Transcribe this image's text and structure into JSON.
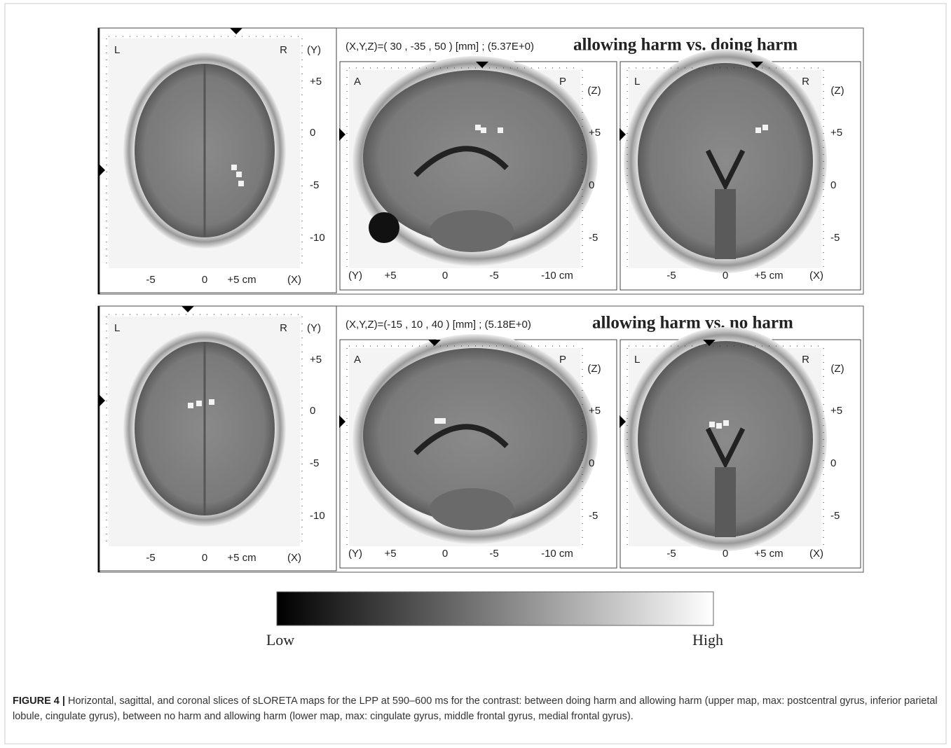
{
  "panels": [
    {
      "coordinates": "(X,Y,Z)=( 30 , -35 , 50 ) [mm] ; (5.37E+0)",
      "title": "allowing harm vs. doing harm",
      "views": [
        {
          "corner_left": "L",
          "corner_right": "R",
          "axis_v": "(Y)",
          "v_ticks": [
            "+5",
            "0",
            "-5",
            "-10"
          ],
          "h_ticks": [
            "-5",
            "0",
            "+5 cm"
          ],
          "axis_h": "(X)"
        },
        {
          "corner_left": "A",
          "corner_right": "P",
          "axis_v": "(Z)",
          "v_ticks": [
            "+5",
            "0",
            "-5"
          ],
          "h_ticks": [
            "+5",
            "0",
            "-5",
            "-10 cm"
          ],
          "axis_h": "(Y)"
        },
        {
          "corner_left": "L",
          "corner_right": "R",
          "axis_v": "(Z)",
          "v_ticks": [
            "+5",
            "0",
            "-5"
          ],
          "h_ticks": [
            "-5",
            "0",
            "+5 cm"
          ],
          "axis_h": "(X)"
        }
      ]
    },
    {
      "coordinates": "(X,Y,Z)=(-15 , 10 , 40 ) [mm] ; (5.18E+0)",
      "title": "allowing harm vs. no harm",
      "views": [
        {
          "corner_left": "L",
          "corner_right": "R",
          "axis_v": "(Y)",
          "v_ticks": [
            "+5",
            "0",
            "-5",
            "-10"
          ],
          "h_ticks": [
            "-5",
            "0",
            "+5 cm"
          ],
          "axis_h": "(X)"
        },
        {
          "corner_left": "A",
          "corner_right": "P",
          "axis_v": "(Z)",
          "v_ticks": [
            "+5",
            "0",
            "-5"
          ],
          "h_ticks": [
            "+5",
            "0",
            "-5",
            "-10 cm"
          ],
          "axis_h": "(Y)"
        },
        {
          "corner_left": "L",
          "corner_right": "R",
          "axis_v": "(Z)",
          "v_ticks": [
            "+5",
            "0",
            "-5"
          ],
          "h_ticks": [
            "-5",
            "0",
            "+5 cm"
          ],
          "axis_h": "(X)"
        }
      ]
    }
  ],
  "colorbar": {
    "low": "Low",
    "high": "High"
  },
  "caption": {
    "label": "FIGURE 4 |",
    "text": "Horizontal, sagittal, and coronal slices of sLORETA maps for the LPP at 590–600 ms for the contrast: between doing harm and allowing harm (upper map, max: postcentral gyrus, inferior parietal lobule, cingulate gyrus), between no harm and allowing harm (lower map, max: cingulate gyrus, middle frontal gyrus, medial frontal gyrus)."
  }
}
